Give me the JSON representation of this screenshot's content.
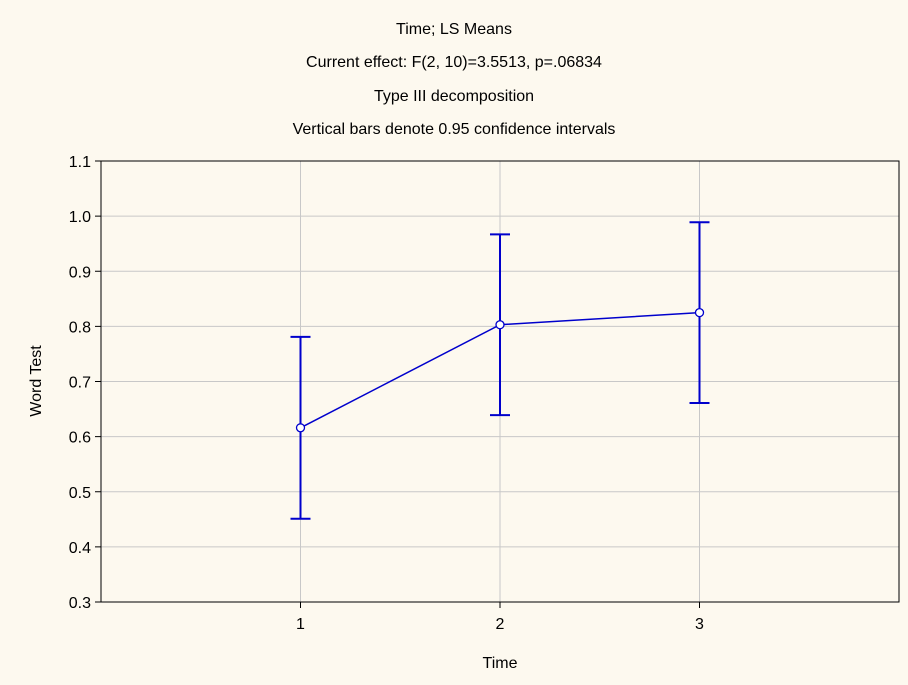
{
  "chart_data": {
    "type": "line",
    "title": "Time; LS Means",
    "subtitle_lines": [
      "Current effect: F(2, 10)=3.5513, p=.06834",
      "Type III decomposition",
      "Vertical bars denote 0.95 confidence intervals"
    ],
    "xlabel": "Time",
    "ylabel": "Word Test",
    "categories": [
      "1",
      "2",
      "3"
    ],
    "x_range": [
      0,
      4
    ],
    "ylim": [
      0.3,
      1.1
    ],
    "y_ticks": [
      "0.3",
      "0.4",
      "0.5",
      "0.6",
      "0.7",
      "0.8",
      "0.9",
      "1.0",
      "1.1"
    ],
    "grid": true,
    "series": [
      {
        "values": [
          0.616,
          0.803,
          0.825
        ],
        "ci_lower": [
          0.451,
          0.639,
          0.661
        ],
        "ci_upper": [
          0.781,
          0.967,
          0.989
        ],
        "color": "#0000cc"
      }
    ]
  }
}
